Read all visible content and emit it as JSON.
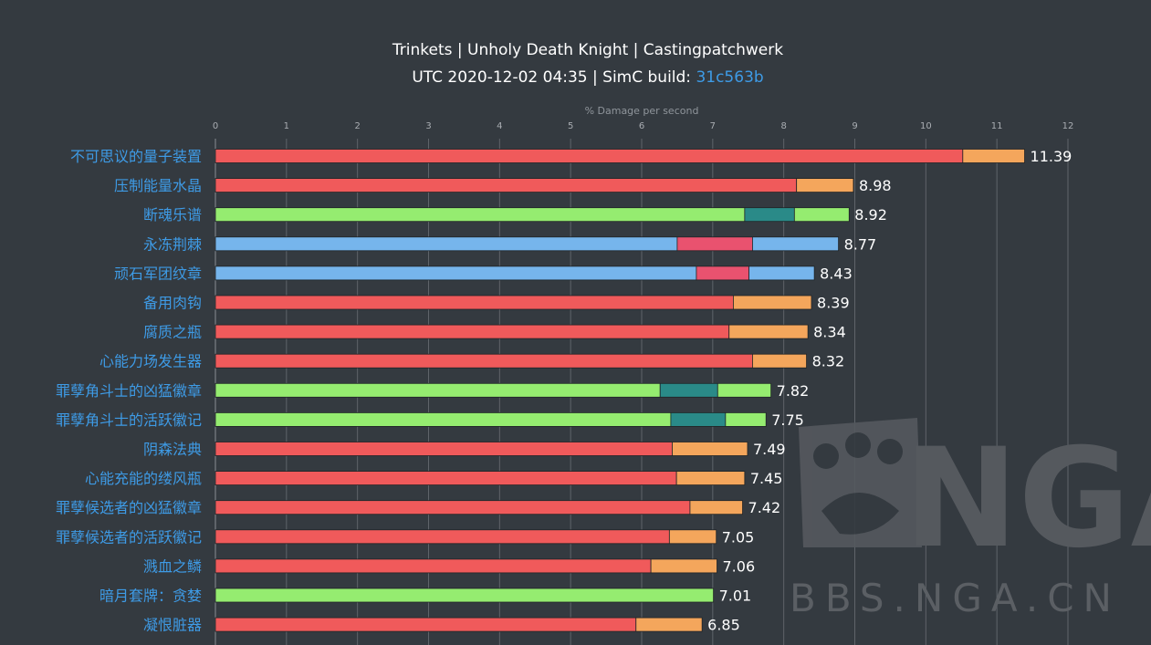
{
  "chart_data": {
    "type": "bar",
    "stacked": true,
    "title": "Trinkets | Unholy Death Knight | Castingpatchwerk",
    "subtitle_prefix": "UTC 2020-12-02 04:35 | SimC build: ",
    "subtitle_link": "31c563b",
    "xlabel": "% Damage per second",
    "xlim": [
      0,
      12
    ],
    "xticks": [
      "0",
      "1",
      "2",
      "3",
      "4",
      "5",
      "6",
      "7",
      "8",
      "9",
      "10",
      "11",
      "12"
    ],
    "grid": true,
    "categories": [
      "不可思议的量子装置",
      "压制能量水晶",
      "断魂乐谱",
      "永冻荆棘",
      "顽石军团纹章",
      "备用肉钩",
      "腐质之瓶",
      "心能力场发生器",
      "罪孽角斗士的凶猛徽章",
      "罪孽角斗士的活跃徽记",
      "阴森法典",
      "心能充能的缕风瓶",
      "罪孽候选者的凶猛徽章",
      "罪孽候选者的活跃徽记",
      "溅血之鳞",
      "暗月套牌：贪婪",
      "凝恨脏器"
    ],
    "segments": [
      [
        {
          "value": 10.52,
          "color": "#f05a5b"
        },
        {
          "value": 0.87,
          "color": "#f4a65c"
        }
      ],
      [
        {
          "value": 8.18,
          "color": "#f05a5b"
        },
        {
          "value": 0.8,
          "color": "#f4a65c"
        }
      ],
      [
        {
          "value": 7.45,
          "color": "#95ec70"
        },
        {
          "value": 0.7,
          "color": "#2a8a88"
        },
        {
          "value": 0.77,
          "color": "#95ec70"
        }
      ],
      [
        {
          "value": 6.5,
          "color": "#76b5ec"
        },
        {
          "value": 1.06,
          "color": "#e9526f"
        },
        {
          "value": 1.21,
          "color": "#76b5ec"
        }
      ],
      [
        {
          "value": 6.77,
          "color": "#76b5ec"
        },
        {
          "value": 0.74,
          "color": "#e9526f"
        },
        {
          "value": 0.92,
          "color": "#76b5ec"
        }
      ],
      [
        {
          "value": 7.29,
          "color": "#f05a5b"
        },
        {
          "value": 1.1,
          "color": "#f4a65c"
        }
      ],
      [
        {
          "value": 7.23,
          "color": "#f05a5b"
        },
        {
          "value": 1.11,
          "color": "#f4a65c"
        }
      ],
      [
        {
          "value": 7.56,
          "color": "#f05a5b"
        },
        {
          "value": 0.76,
          "color": "#f4a65c"
        }
      ],
      [
        {
          "value": 6.26,
          "color": "#95ec70"
        },
        {
          "value": 0.81,
          "color": "#2a8a88"
        },
        {
          "value": 0.75,
          "color": "#95ec70"
        }
      ],
      [
        {
          "value": 6.41,
          "color": "#95ec70"
        },
        {
          "value": 0.77,
          "color": "#2a8a88"
        },
        {
          "value": 0.57,
          "color": "#95ec70"
        }
      ],
      [
        {
          "value": 6.43,
          "color": "#f05a5b"
        },
        {
          "value": 1.06,
          "color": "#f4a65c"
        }
      ],
      [
        {
          "value": 6.49,
          "color": "#f05a5b"
        },
        {
          "value": 0.96,
          "color": "#f4a65c"
        }
      ],
      [
        {
          "value": 6.68,
          "color": "#f05a5b"
        },
        {
          "value": 0.74,
          "color": "#f4a65c"
        }
      ],
      [
        {
          "value": 6.39,
          "color": "#f05a5b"
        },
        {
          "value": 0.66,
          "color": "#f4a65c"
        }
      ],
      [
        {
          "value": 6.13,
          "color": "#f05a5b"
        },
        {
          "value": 0.93,
          "color": "#f4a65c"
        }
      ],
      [
        {
          "value": 7.01,
          "color": "#95ec70"
        }
      ],
      [
        {
          "value": 5.92,
          "color": "#f05a5b"
        },
        {
          "value": 0.93,
          "color": "#f4a65c"
        }
      ]
    ],
    "values": [
      "11.39",
      "8.98",
      "8.92",
      "8.77",
      "8.43",
      "8.39",
      "8.34",
      "8.32",
      "7.82",
      "7.75",
      "7.49",
      "7.45",
      "7.42",
      "7.05",
      "7.06",
      "7.01",
      "6.85"
    ]
  },
  "watermark": {
    "logo_text": "NGA",
    "site_text": "BBS.NGA.CN"
  }
}
